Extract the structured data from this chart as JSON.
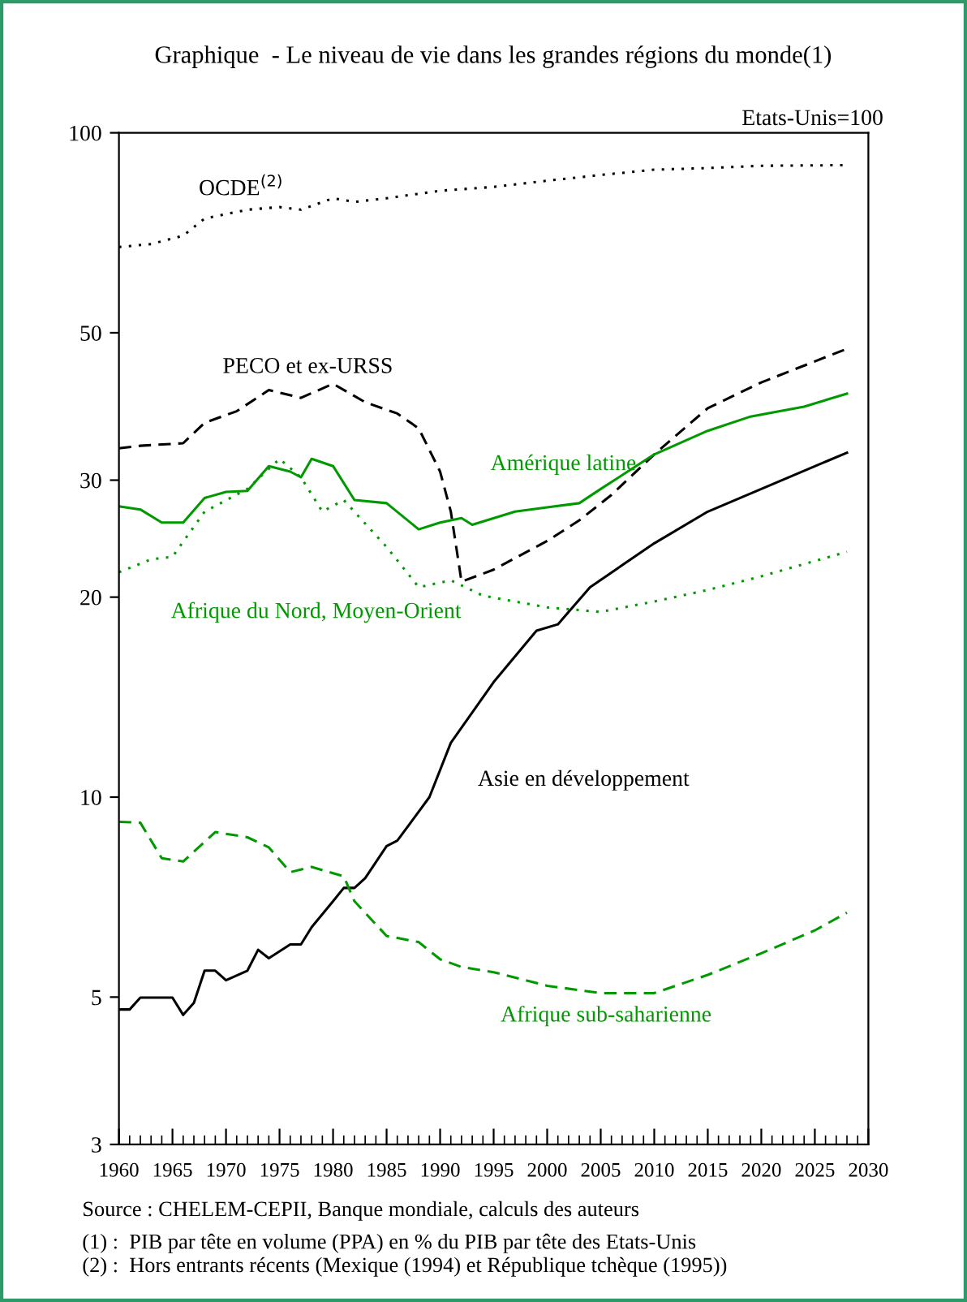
{
  "chart_data": {
    "type": "line",
    "title": "Graphique  - Le niveau de vie dans les grandes régions du monde(1)",
    "ylabel": "Etats-Unis=100",
    "log": "y",
    "xlim": [
      1960,
      2030
    ],
    "xticks": [
      1960,
      1965,
      1970,
      1975,
      1980,
      1985,
      1990,
      1995,
      2000,
      2005,
      2010,
      2015,
      2020,
      2025,
      2030
    ],
    "ylim": [
      3,
      100
    ],
    "yticks": [
      3,
      5,
      10,
      20,
      30,
      50,
      100
    ],
    "grid": false,
    "legend": false,
    "series": [
      {
        "name": "OCDE$^{(2)}$",
        "color": "#000000",
        "line_style": "dotted",
        "x": [
          1960,
          1963,
          1966,
          1968,
          1972,
          1975,
          1977,
          1980,
          1982,
          1985,
          1990,
          1995,
          2000,
          2005,
          2010,
          2015,
          2020,
          2028
        ],
        "values": [
          67.3,
          68,
          70,
          74.3,
          76.6,
          77.3,
          76.6,
          79.7,
          78.7,
          79.7,
          81.8,
          82.9,
          84.7,
          86.4,
          88,
          88.5,
          89.2,
          89.4
        ]
      },
      {
        "name": "PECO et ex-URSS",
        "color": "#000000",
        "line_style": "dashed",
        "x": [
          1960,
          1962,
          1966,
          1968,
          1971,
          1974,
          1977,
          1980,
          1983,
          1986,
          1988,
          1990,
          1991,
          1992,
          1995,
          2000,
          2003,
          2006,
          2010,
          2015,
          2020,
          2028
        ],
        "values": [
          33.5,
          33.8,
          34.1,
          36.6,
          38.1,
          41,
          39.9,
          41.9,
          39.3,
          37.8,
          35.9,
          30.9,
          26.9,
          21.1,
          22,
          24.3,
          26.1,
          28.5,
          32.8,
          38.5,
          42.1,
          47.3
        ]
      },
      {
        "name": "Amérique latine",
        "color": "#009900",
        "line_style": "solid",
        "x": [
          1960,
          1962,
          1964,
          1966,
          1968,
          1970,
          1972,
          1974,
          1976,
          1977,
          1978,
          1980,
          1982,
          1985,
          1988,
          1990,
          1992,
          1993,
          1997,
          2000,
          2003,
          2005,
          2010,
          2015,
          2019,
          2024,
          2028
        ],
        "values": [
          27.4,
          27.1,
          25.9,
          25.9,
          28.2,
          28.8,
          28.9,
          31.5,
          30.9,
          30.3,
          32.3,
          31.5,
          28,
          27.7,
          25.3,
          25.9,
          26.3,
          25.7,
          26.9,
          27.3,
          27.7,
          29.1,
          32.8,
          35.6,
          37.4,
          38.7,
          40.5
        ]
      },
      {
        "name": "Afrique du Nord, Moyen-Orient",
        "color": "#009900",
        "line_style": "dotted",
        "x": [
          1960,
          1963,
          1965,
          1968,
          1972,
          1975,
          1977,
          1979,
          1981,
          1985,
          1988,
          1991,
          1994,
          2000,
          2005,
          2010,
          2015,
          2020,
          2028
        ],
        "values": [
          21.8,
          22.8,
          23,
          26.9,
          29.1,
          32.3,
          30.3,
          26.9,
          28,
          23.8,
          20.7,
          21.2,
          20.1,
          19.3,
          19,
          19.7,
          20.5,
          21.5,
          23.4
        ]
      },
      {
        "name": "Asie en développement",
        "color": "#000000",
        "line_style": "solid",
        "x": [
          1960,
          1961,
          1962,
          1965,
          1966,
          1967,
          1968,
          1969,
          1970,
          1972,
          1973,
          1974,
          1976,
          1977,
          1978,
          1980,
          1981,
          1982,
          1983,
          1985,
          1986,
          1987,
          1989,
          1991,
          1995,
          1999,
          2001,
          2004,
          2010,
          2015,
          2020,
          2028
        ],
        "values": [
          4.79,
          4.79,
          4.99,
          4.99,
          4.7,
          4.9,
          5.48,
          5.48,
          5.3,
          5.48,
          5.89,
          5.72,
          6,
          6,
          6.37,
          6.97,
          7.3,
          7.3,
          7.55,
          8.44,
          8.6,
          9.04,
          10,
          12.07,
          14.9,
          17.8,
          18.2,
          20.7,
          24.1,
          26.9,
          29.1,
          33
        ]
      },
      {
        "name": "Afrique sub-saharienne",
        "color": "#009900",
        "line_style": "dashed",
        "x": [
          1960,
          1962,
          1964,
          1966,
          1969,
          1972,
          1974,
          1976,
          1978,
          1981,
          1982,
          1985,
          1988,
          1990,
          1992,
          1995,
          2000,
          2005,
          2010,
          2015,
          2020,
          2025,
          2028
        ],
        "values": [
          9.18,
          9.15,
          8.09,
          8,
          8.86,
          8.7,
          8.4,
          7.71,
          7.85,
          7.6,
          6.97,
          6.18,
          6.05,
          5.7,
          5.55,
          5.45,
          5.2,
          5.07,
          5.07,
          5.4,
          5.82,
          6.3,
          6.7
        ]
      }
    ],
    "annotations": [
      "Source : CHELEM-CEPII, Banque mondiale, calculs des auteurs",
      "(1) :  PIB par tête en volume (PPA) en % du PIB par tête des Etats-Unis",
      "(2) :  Hors entrants récents (Mexique (1994) et République tchèque (1995))"
    ]
  }
}
